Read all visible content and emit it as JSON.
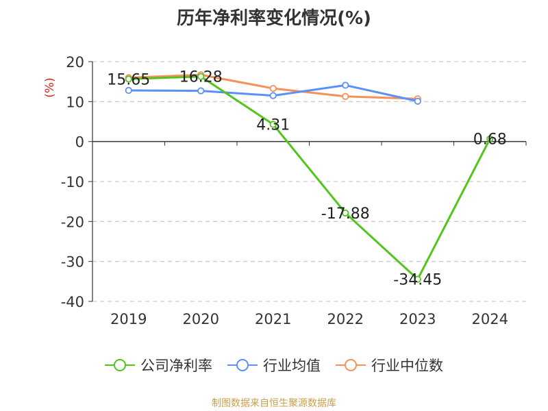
{
  "chart_data": {
    "type": "line",
    "title": "历年净利率变化情况(%)",
    "ylabel": "(%)",
    "xlabel": "",
    "categories": [
      "2019",
      "2020",
      "2021",
      "2022",
      "2023",
      "2024"
    ],
    "ylim": [
      -40,
      20
    ],
    "yticks": [
      20,
      10,
      0,
      -10,
      -20,
      -30,
      -40
    ],
    "grid": true,
    "legend_position": "bottom",
    "series": [
      {
        "name": "公司净利率",
        "color": "#52c41a",
        "values": [
          15.65,
          16.28,
          4.31,
          -17.88,
          -34.45,
          0.68
        ],
        "labels": [
          "15.65",
          "16.28",
          "4.31",
          "-17.88",
          "-34.45",
          "0.68"
        ]
      },
      {
        "name": "行业均值",
        "color": "#5b8ff9",
        "values": [
          12.8,
          12.7,
          11.5,
          14.1,
          10.1,
          null
        ]
      },
      {
        "name": "行业中位数",
        "color": "#f6905a",
        "values": [
          16.0,
          16.7,
          13.3,
          11.3,
          10.7,
          null
        ]
      }
    ]
  },
  "source": "制图数据来自恒生聚源数据库",
  "colors": {
    "ylabel": "#d9201e",
    "axis": "#333333",
    "grid": "#cccccc",
    "source": "#c8a04a"
  }
}
